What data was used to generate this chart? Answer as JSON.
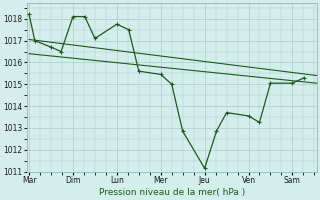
{
  "background_color": "#d4eeee",
  "grid_color": "#aacccc",
  "line_color": "#1a5c1a",
  "xlabel": "Pression niveau de la mer( hPa )",
  "ylim": [
    1011,
    1018.7
  ],
  "yticks": [
    1011,
    1012,
    1013,
    1014,
    1015,
    1016,
    1017,
    1018
  ],
  "x_labels": [
    "Mar",
    "Dim",
    "Lun",
    "Mer",
    "Jeu",
    "Ven",
    "Sam"
  ],
  "x_positions": [
    0,
    1,
    2,
    3,
    4,
    5,
    6
  ],
  "xlim": [
    -0.05,
    6.55
  ],
  "main_x": [
    0.0,
    0.13,
    0.5,
    0.73,
    1.0,
    1.27,
    1.5,
    2.0,
    2.27,
    2.5,
    3.0,
    3.25,
    3.5,
    4.0,
    4.27,
    4.5,
    5.0,
    5.25,
    5.5,
    6.0,
    6.27
  ],
  "main_y": [
    1018.2,
    1017.0,
    1016.7,
    1016.5,
    1018.1,
    1018.1,
    1017.1,
    1017.75,
    1017.5,
    1015.6,
    1015.45,
    1015.0,
    1012.85,
    1011.15,
    1012.85,
    1013.7,
    1013.55,
    1013.25,
    1015.05,
    1015.05,
    1015.3
  ],
  "trend1_x": [
    0.0,
    6.55
  ],
  "trend1_y": [
    1017.05,
    1015.4
  ],
  "trend2_x": [
    0.0,
    6.55
  ],
  "trend2_y": [
    1016.4,
    1015.05
  ]
}
